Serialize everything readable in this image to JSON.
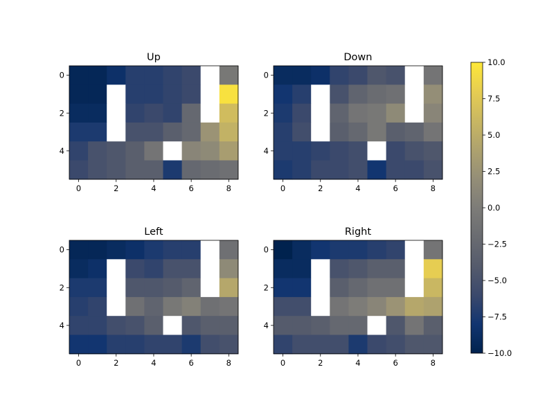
{
  "chart_data": {
    "type": "heatmap",
    "colormap": "cividis",
    "colorbar": {
      "vmin": -10.0,
      "vmax": 10.0,
      "ticks": [
        -10.0,
        -7.5,
        -5.0,
        -2.5,
        0.0,
        2.5,
        5.0,
        7.5,
        10.0
      ],
      "tick_labels": [
        "−10.0",
        "−7.5",
        "−5.0",
        "−2.5",
        "0.0",
        "2.5",
        "5.0",
        "7.5",
        "10.0"
      ]
    },
    "grid": {
      "rows": 6,
      "cols": 9
    },
    "x_ticks": [
      0,
      2,
      4,
      6,
      8
    ],
    "y_ticks": [
      0,
      2,
      4
    ],
    "masked_value": null,
    "panels": [
      {
        "title": "Up",
        "values": [
          [
            -9.5,
            -9.5,
            -8.5,
            -7,
            -7,
            -6.5,
            -6,
            null,
            -0.5
          ],
          [
            -9.5,
            -9.5,
            null,
            -7,
            -7,
            -6.5,
            -6,
            null,
            9.5
          ],
          [
            -9,
            -9,
            null,
            -6.5,
            -6,
            -6.5,
            -2.5,
            null,
            6.5
          ],
          [
            -7.5,
            -7.5,
            null,
            -5,
            -5,
            -3.5,
            -2.5,
            2.5,
            5.5
          ],
          [
            -6.5,
            -5,
            -4.5,
            -3.5,
            -1,
            null,
            1,
            1.5,
            3.5
          ],
          [
            -6,
            -5,
            -4.5,
            -3.5,
            -3.5,
            -7.5,
            -2.5,
            -2,
            -1.5
          ]
        ]
      },
      {
        "title": "Down",
        "values": [
          [
            -9,
            -9,
            -8.5,
            -6.5,
            -6,
            -4.5,
            -5,
            null,
            -1
          ],
          [
            -8,
            -7,
            null,
            -5,
            -3,
            -2,
            -1.5,
            null,
            2
          ],
          [
            -7.5,
            -6,
            null,
            -3,
            -1,
            -0.5,
            1.5,
            null,
            1
          ],
          [
            -7,
            -5.5,
            null,
            -3.5,
            -2.5,
            -0.5,
            -3.5,
            -3,
            -1
          ],
          [
            -7,
            -7,
            -6.5,
            -6,
            -5.5,
            null,
            -6,
            -5,
            -4.5
          ],
          [
            -7.5,
            -7,
            -6,
            -6,
            -5.5,
            -8,
            -6,
            -6,
            -5
          ]
        ]
      },
      {
        "title": "Left",
        "values": [
          [
            -9.5,
            -9.5,
            -9,
            -8.5,
            -7.5,
            -7,
            -7,
            null,
            -1.5
          ],
          [
            -9,
            -8.5,
            null,
            -6,
            -6.5,
            -5,
            -5,
            null,
            1.5
          ],
          [
            -7.5,
            -7.5,
            null,
            -4.5,
            -4.5,
            -4,
            -3,
            null,
            4.5
          ],
          [
            -7,
            -6.5,
            null,
            -1.5,
            -3,
            -0.5,
            0.5,
            -1.5,
            -1
          ],
          [
            -6.5,
            -6.5,
            -5.5,
            -5,
            -3.5,
            null,
            -4.5,
            -3.5,
            -3.5
          ],
          [
            -8,
            -8,
            -7,
            -7,
            -6.5,
            -6.5,
            -7.5,
            -5.5,
            -5
          ]
        ]
      },
      {
        "title": "Right",
        "values": [
          [
            -10,
            -9,
            -8,
            -7.5,
            -7.5,
            -7,
            -6.5,
            null,
            -1
          ],
          [
            -9,
            -9,
            null,
            -5,
            -4.5,
            -3.5,
            -3.5,
            null,
            8
          ],
          [
            -8,
            -8,
            null,
            -3.5,
            -2.5,
            -1.5,
            -1.5,
            null,
            6
          ],
          [
            -5.5,
            -5.5,
            null,
            -1,
            0,
            1,
            2.5,
            4.5,
            4
          ],
          [
            -4,
            -4,
            -3.5,
            -2.5,
            -2.5,
            null,
            -4.5,
            -1,
            -3.5
          ],
          [
            -6.5,
            -5.5,
            -5.5,
            -5.5,
            -7.5,
            -6,
            -5.5,
            -4.5,
            -4.5
          ]
        ]
      }
    ]
  }
}
